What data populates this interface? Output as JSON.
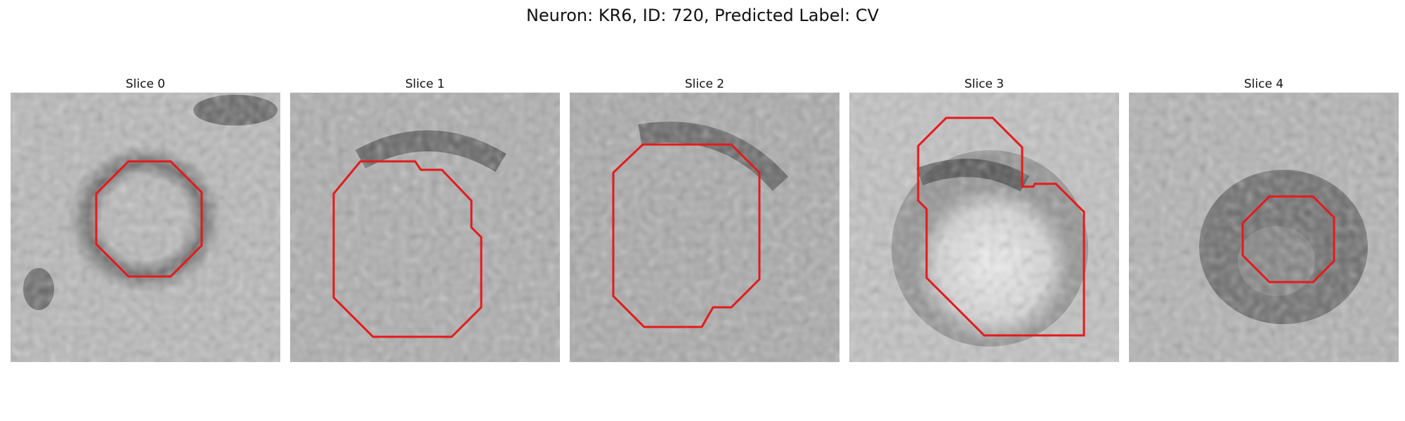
{
  "figure": {
    "title": "Neuron: KR6, ID: 720, Predicted Label: CV",
    "outline_color": "#e41a1c"
  },
  "slices": [
    {
      "label": "Slice 0"
    },
    {
      "label": "Slice 1"
    },
    {
      "label": "Slice 2"
    },
    {
      "label": "Slice 3"
    },
    {
      "label": "Slice 4"
    }
  ]
}
